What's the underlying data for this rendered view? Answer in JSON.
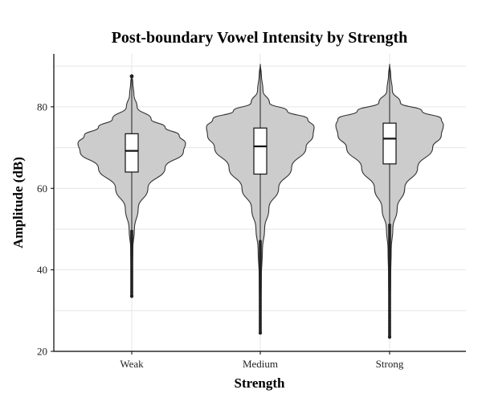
{
  "chart_data": {
    "type": "violin",
    "title": "Post-boundary Vowel Intensity by Strength",
    "xlabel": "Strength",
    "ylabel": "Amplitude (dB)",
    "ylim": [
      20,
      93
    ],
    "yticks": [
      20,
      40,
      60,
      80
    ],
    "grid": true,
    "categories": [
      "Weak",
      "Medium",
      "Strong"
    ],
    "series": [
      {
        "category": "Weak",
        "box": {
          "q1": 64,
          "median": 69.2,
          "q3": 73.4,
          "whisker_low": 49.5,
          "whisker_high": 87.5
        },
        "outlier_range": [
          33.5,
          49.5
        ],
        "density": [
          [
            33.5,
            0.0
          ],
          [
            40,
            0.01
          ],
          [
            45,
            0.02
          ],
          [
            50,
            0.05
          ],
          [
            55,
            0.12
          ],
          [
            60,
            0.3
          ],
          [
            65,
            0.62
          ],
          [
            69,
            0.96
          ],
          [
            71,
            1.0
          ],
          [
            73,
            0.88
          ],
          [
            75,
            0.62
          ],
          [
            77,
            0.36
          ],
          [
            80,
            0.1
          ],
          [
            83,
            0.04
          ],
          [
            86,
            0.02
          ],
          [
            88,
            0.0
          ]
        ]
      },
      {
        "category": "Medium",
        "box": {
          "q1": 63.5,
          "median": 70.3,
          "q3": 74.8,
          "whisker_low": 47,
          "whisker_high": 90.5
        },
        "outlier_range": [
          24.5,
          47
        ],
        "density": [
          [
            24.5,
            0.0
          ],
          [
            30,
            0.01
          ],
          [
            38,
            0.02
          ],
          [
            45,
            0.04
          ],
          [
            50,
            0.08
          ],
          [
            55,
            0.16
          ],
          [
            60,
            0.34
          ],
          [
            65,
            0.58
          ],
          [
            70,
            0.85
          ],
          [
            73,
            0.98
          ],
          [
            75,
            1.0
          ],
          [
            77,
            0.88
          ],
          [
            79,
            0.5
          ],
          [
            81,
            0.17
          ],
          [
            84,
            0.05
          ],
          [
            88,
            0.02
          ],
          [
            90.5,
            0.0
          ]
        ]
      },
      {
        "category": "Strong",
        "box": {
          "q1": 66,
          "median": 72.2,
          "q3": 76,
          "whisker_low": 51,
          "whisker_high": 90.5
        },
        "outlier_range": [
          23.5,
          51
        ],
        "density": [
          [
            23.5,
            0.0
          ],
          [
            30,
            0.01
          ],
          [
            38,
            0.02
          ],
          [
            45,
            0.03
          ],
          [
            50,
            0.06
          ],
          [
            55,
            0.14
          ],
          [
            60,
            0.28
          ],
          [
            65,
            0.52
          ],
          [
            70,
            0.8
          ],
          [
            73,
            0.96
          ],
          [
            75.5,
            1.0
          ],
          [
            77,
            0.96
          ],
          [
            79,
            0.6
          ],
          [
            81,
            0.2
          ],
          [
            84,
            0.05
          ],
          [
            88,
            0.02
          ],
          [
            90.5,
            0.0
          ]
        ]
      }
    ]
  }
}
